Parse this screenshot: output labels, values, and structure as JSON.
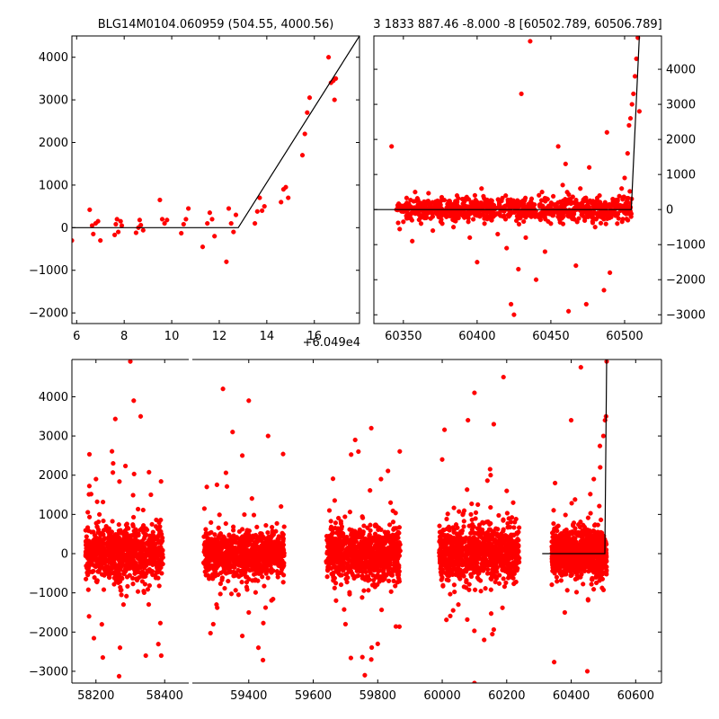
{
  "colors": {
    "points": "#ff0000",
    "model": "#000000",
    "axes": "#000000",
    "background": "#ffffff"
  },
  "chart_data": [
    {
      "type": "scatter",
      "id": "top_left",
      "title": "BLG14M0104.060959 (504.55, 4000.56)",
      "xlabel": "",
      "ylabel": "",
      "xlim": [
        5.8,
        17.9
      ],
      "ylim": [
        -2250,
        4500
      ],
      "x_offset_label": "+6.049e4",
      "xticks": [
        6,
        8,
        10,
        12,
        14,
        16
      ],
      "yticks": [
        -2000,
        -1000,
        0,
        1000,
        2000,
        3000,
        4000
      ],
      "ytick_side": "left",
      "points": {
        "x": [
          5.8,
          6.55,
          6.65,
          6.7,
          6.8,
          6.9,
          7.0,
          7.6,
          7.65,
          7.7,
          7.75,
          7.85,
          7.9,
          8.5,
          8.6,
          8.65,
          8.7,
          8.8,
          9.5,
          9.6,
          9.7,
          9.8,
          10.4,
          10.5,
          10.6,
          10.7,
          11.3,
          11.5,
          11.6,
          11.7,
          11.8,
          12.3,
          12.4,
          12.5,
          12.6,
          12.7,
          13.5,
          13.6,
          13.7,
          13.8,
          13.9,
          14.6,
          14.7,
          14.8,
          14.9,
          15.5,
          15.6,
          15.7,
          15.8,
          16.6,
          16.7,
          16.8,
          16.85,
          16.9
        ],
        "y": [
          -300,
          420,
          50,
          -150,
          100,
          150,
          -300,
          -170,
          80,
          200,
          -100,
          150,
          50,
          -120,
          0,
          180,
          60,
          -60,
          650,
          200,
          100,
          180,
          -130,
          80,
          200,
          450,
          -450,
          100,
          350,
          200,
          -200,
          -800,
          450,
          100,
          -100,
          300,
          100,
          380,
          700,
          400,
          500,
          600,
          900,
          950,
          700,
          1700,
          2200,
          2700,
          3050,
          4000,
          3400,
          3450,
          3000,
          3500
        ]
      },
      "model": {
        "x": [
          5.8,
          12.8,
          17.9
        ],
        "y": [
          0,
          0,
          4500
        ]
      }
    },
    {
      "type": "scatter",
      "id": "top_right",
      "title": "3 1833 887.46 -8.000 -8 [60502.789, 60506.789]",
      "xlabel": "",
      "ylabel": "",
      "xlim": [
        60330,
        60525
      ],
      "ylim": [
        -3250,
        4950
      ],
      "xticks": [
        60350,
        60400,
        60450,
        60500
      ],
      "yticks": [
        -3000,
        -2000,
        -1000,
        0,
        1000,
        2000,
        3000,
        4000
      ],
      "ytick_side": "right",
      "points": {
        "x": [
          60342,
          60350,
          60356,
          60358,
          60362,
          60370,
          60376,
          60380,
          60384,
          60390,
          60395,
          60400,
          60403,
          60405,
          60410,
          60414,
          60420,
          60423,
          60425,
          60428,
          60430,
          60433,
          60436,
          60440,
          60444,
          60446,
          60450,
          60455,
          60458,
          60460,
          60462,
          60465,
          60467,
          60470,
          60474,
          60476,
          60480,
          60483,
          60486,
          60488,
          60490,
          60492,
          60495,
          60498,
          60500,
          60502,
          60503,
          60504,
          60505,
          60506,
          60507,
          60508,
          60509,
          60510
        ],
        "y": [
          1800,
          -350,
          -900,
          500,
          -400,
          -600,
          350,
          150,
          -500,
          300,
          -800,
          -1500,
          600,
          -400,
          250,
          -700,
          -1100,
          -2700,
          -3000,
          -1700,
          3300,
          -800,
          4800,
          -2000,
          500,
          -1200,
          -400,
          1800,
          700,
          1300,
          -2900,
          -200,
          -1600,
          600,
          -2700,
          1200,
          -500,
          400,
          -2300,
          2200,
          -1800,
          300,
          -400,
          600,
          900,
          1600,
          2400,
          2600,
          3000,
          3300,
          3800,
          4300,
          4900,
          2800
        ]
      },
      "model": {
        "x": [
          60330,
          60504.5,
          60510
        ],
        "y": [
          0,
          0,
          4950
        ]
      }
    },
    {
      "type": "scatter",
      "id": "bottom",
      "title": "",
      "xlabel": "",
      "ylabel": "",
      "broken_x_axis": true,
      "segments": [
        {
          "xlim": [
            58130,
            58470
          ],
          "xticks": [
            58200,
            58400
          ]
        },
        {
          "xlim": [
            59225,
            60680
          ],
          "xticks": [
            59400,
            59600,
            59800,
            60000,
            60200,
            60400,
            60600
          ]
        }
      ],
      "ylim": [
        -3300,
        4950
      ],
      "yticks": [
        -3000,
        -2000,
        -1000,
        0,
        1000,
        2000,
        3000,
        4000
      ],
      "ytick_side": "left",
      "observing_seasons": [
        {
          "x_range": [
            58170,
            58395
          ],
          "y_range": [
            -1000,
            1000
          ]
        },
        {
          "x_range": [
            59260,
            59510
          ],
          "y_range": [
            -900,
            900
          ]
        },
        {
          "x_range": [
            59640,
            59870
          ],
          "y_range": [
            -1000,
            1000
          ]
        },
        {
          "x_range": [
            59990,
            60240
          ],
          "y_range": [
            -1100,
            1100
          ]
        },
        {
          "x_range": [
            60340,
            60510
          ],
          "y_range": [
            -900,
            900
          ]
        }
      ],
      "points": {
        "x": [
          58180,
          58200,
          58220,
          58250,
          58270,
          58300,
          58330,
          58345,
          58360,
          58390,
          58210,
          58280,
          58310,
          59270,
          59290,
          59320,
          59350,
          59380,
          59400,
          59430,
          59460,
          59500,
          59300,
          59380,
          59400,
          59650,
          59700,
          59730,
          59760,
          59780,
          59800,
          59840,
          59740,
          59780,
          59810,
          60000,
          60050,
          60080,
          60100,
          60130,
          60160,
          60190,
          60220,
          60100,
          60150,
          60200,
          60350,
          60380,
          60400,
          60430,
          60450,
          60470,
          60490,
          60500,
          60505,
          60508,
          60510
        ],
        "y": [
          -1600,
          1900,
          -2650,
          2300,
          -2400,
          4900,
          3500,
          -2600,
          1500,
          -2600,
          1000,
          -1300,
          3900,
          1700,
          -1800,
          4200,
          3100,
          -2100,
          3900,
          -2400,
          3000,
          1200,
          -1300,
          2500,
          -1500,
          1100,
          -1800,
          2900,
          -3100,
          3200,
          -2300,
          1300,
          2600,
          -2700,
          1900,
          2400,
          -1300,
          3400,
          4100,
          -2200,
          3300,
          4500,
          1300,
          -3300,
          2000,
          1600,
          1800,
          -1500,
          3400,
          4750,
          -3000,
          1900,
          2200,
          3000,
          3400,
          3500,
          4900
        ]
      },
      "model": {
        "x": [
          60310,
          60504.5,
          60510
        ],
        "y": [
          0,
          0,
          4950
        ]
      }
    }
  ]
}
